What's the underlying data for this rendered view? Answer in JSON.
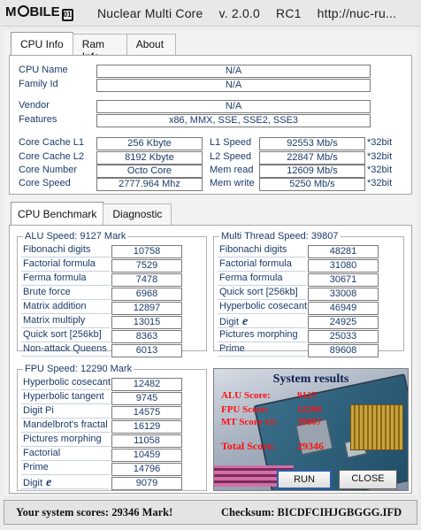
{
  "titlebar": {
    "logo_text_a": "M",
    "logo_text_b": "BILE",
    "logo_icon": "01",
    "app_name": "Nuclear Multi Core",
    "version": "v. 2.0.0",
    "release": "RC1",
    "url": "http://nuc-ru..."
  },
  "tabs": [
    "CPU Info",
    "Ram Info",
    "About"
  ],
  "cpu_info": {
    "cpu_name_label": "CPU Name",
    "cpu_name": "N/A",
    "family_label": "Family Id",
    "family": "N/A",
    "vendor_label": "Vendor",
    "vendor": "N/A",
    "features_label": "Features",
    "features": "x86, MMX, SSE, SSE2, SSE3",
    "cache_l1_label": "Core Cache L1",
    "cache_l1": "256 Kbyte",
    "cache_l2_label": "Core Cache L2",
    "cache_l2": "8192 Kbyte",
    "core_number_label": "Core Number",
    "core_number": "Octo Core",
    "core_speed_label": "Core Speed",
    "core_speed": "2777.964 Mhz",
    "l1_speed_label": "L1 Speed",
    "l1_speed": "92553 Mb/s",
    "l2_speed_label": "L2 Speed",
    "l2_speed": "22847 Mb/s",
    "mem_read_label": "Mem read",
    "mem_read": "12609 Mb/s",
    "mem_write_label": "Mem write",
    "mem_write": "5250 Mb/s",
    "unit_32bit": "*32bit"
  },
  "bench_tabs": [
    "CPU Benchmark",
    "Diagnostic"
  ],
  "alu": {
    "title": "ALU Speed: 9127 Mark",
    "rows": [
      {
        "label": "Fibonachi digits",
        "value": "10758"
      },
      {
        "label": "Factorial formula",
        "value": "7529"
      },
      {
        "label": "Ferma formula",
        "value": "7478"
      },
      {
        "label": "Brute force",
        "value": "6968"
      },
      {
        "label": "Matrix addition",
        "value": "12897"
      },
      {
        "label": "Matrix multiply",
        "value": "13015"
      },
      {
        "label": "Quick sort [256kb]",
        "value": "8363"
      },
      {
        "label": "Non-attack Queens",
        "value": "6013"
      }
    ]
  },
  "mt": {
    "title": "Multi Thread Speed: 39807",
    "rows": [
      {
        "label": "Fibonachi digits",
        "value": "48281"
      },
      {
        "label": "Factorial formula",
        "value": "31080"
      },
      {
        "label": "Ferma formula",
        "value": "30671"
      },
      {
        "label": "Quick sort [256kb]",
        "value": "33008"
      },
      {
        "label": "Hyperbolic cosecant",
        "value": "46949"
      },
      {
        "label": "Digit",
        "value": "24925"
      },
      {
        "label": "Pictures morphing",
        "value": "25033"
      },
      {
        "label": "Prime",
        "value": "89608"
      }
    ]
  },
  "fpu": {
    "title": "FPU Speed: 12290 Mark",
    "rows": [
      {
        "label": "Hyperbolic cosecant",
        "value": "12482"
      },
      {
        "label": "Hyperbolic tangent",
        "value": "9745"
      },
      {
        "label": "Digit Pi",
        "value": "14575"
      },
      {
        "label": "Mandelbrot's fractal",
        "value": "16129"
      },
      {
        "label": "Pictures morphing",
        "value": "11058"
      },
      {
        "label": "Factorial",
        "value": "10459"
      },
      {
        "label": "Prime",
        "value": "14796"
      },
      {
        "label": "Digit",
        "value": "9079"
      }
    ]
  },
  "euler_symbol": "e",
  "results": {
    "heading": "System results",
    "alu_label": "ALU Score:",
    "alu_value": "9127",
    "fpu_label": "FPU Score:",
    "fpu_value": "12290",
    "mt_label": "MT Score x1:",
    "mt_value": "39807",
    "total_label": "Total Score:",
    "total_value": "29346",
    "run_label": "RUN",
    "close_label": "CLOSE"
  },
  "status": {
    "scores": "Your system scores: 29346 Mark!",
    "checksum": "Checksum: BICDFCIHJGBGGG.IFD"
  },
  "colors": {
    "label_text": "#1c3b6a",
    "score_red": "#ff1010",
    "results_heading": "#0b1f4f"
  }
}
